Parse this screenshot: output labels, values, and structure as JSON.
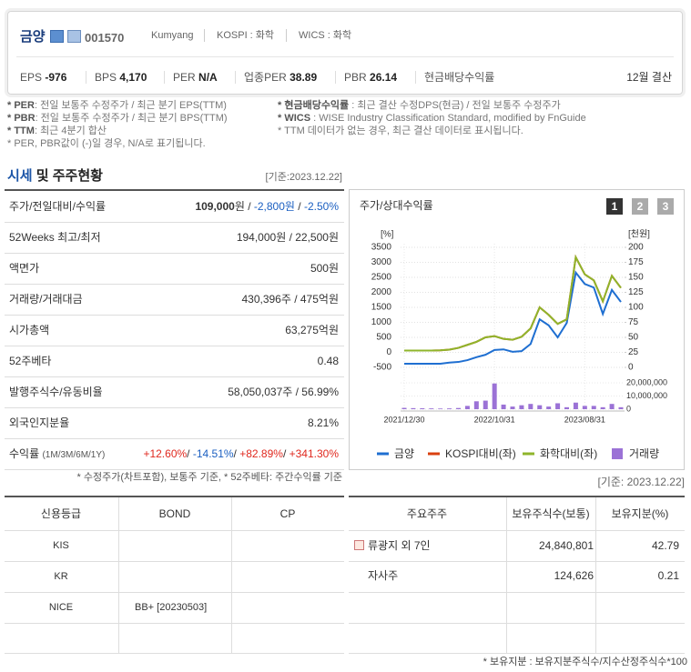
{
  "header": {
    "name": "금양",
    "code": "001570",
    "eng_name": "Kumyang",
    "market": "KOSPI : 화학",
    "wics": "WICS : 화학",
    "metrics": [
      {
        "label": "EPS",
        "value": "-976"
      },
      {
        "label": "BPS",
        "value": "4,170"
      },
      {
        "label": "PER",
        "value": "N/A"
      },
      {
        "label": "업종PER",
        "value": "38.89"
      },
      {
        "label": "PBR",
        "value": "26.14"
      },
      {
        "label": "현금배당수익률"
      }
    ],
    "fiscal": "12월 결산"
  },
  "notes_left": [
    {
      "term": "* PER",
      "text": ": 전일 보통주 수정주가 / 최근 분기 EPS(TTM)"
    },
    {
      "term": "* PBR",
      "text": ": 전일 보통주 수정주가 / 최근 분기 BPS(TTM)"
    },
    {
      "term": "* TTM",
      "text": ": 최근 4분기 합산"
    },
    {
      "text": "* PER, PBR값이 (-)일 경우, N/A로 표기됩니다."
    }
  ],
  "notes_right": [
    {
      "term": "* 현금배당수익률",
      "text": " : 최근 결산 수정DPS(현금) / 전일 보통주 수정주가"
    },
    {
      "term": "* WICS",
      "text": " : WISE Industry Classification Standard, modified by FnGuide"
    },
    {
      "text": "* TTM 데이터가 없는 경우, 최근 결산 데이터로 표시됩니다."
    }
  ],
  "section": {
    "title_a": "시세",
    "title_b": " 및 주주현황",
    "date": "[기준:2023.12.22]"
  },
  "quote_table": {
    "rows": [
      {
        "label": "주가/전일대비/수익률",
        "parts": [
          {
            "text": "109,000",
            "bold": true
          },
          {
            "text": "원 / "
          },
          {
            "text": "-2,800원",
            "color": "#1b5fc1"
          },
          {
            "text": " / "
          },
          {
            "text": "-2.50%",
            "color": "#1b5fc1"
          }
        ]
      },
      {
        "label": "52Weeks 최고/최저",
        "parts": [
          {
            "text": "194,000원 / 22,500원"
          }
        ]
      },
      {
        "label": "액면가",
        "parts": [
          {
            "text": "500원"
          }
        ]
      },
      {
        "label": "거래량/거래대금",
        "parts": [
          {
            "text": "430,396주 / 475억원"
          }
        ]
      },
      {
        "label": "시가총액",
        "parts": [
          {
            "text": "63,275억원"
          }
        ]
      },
      {
        "label": "52주베타",
        "parts": [
          {
            "text": "0.48"
          }
        ]
      },
      {
        "label": "발행주식수/유동비율",
        "parts": [
          {
            "text": "58,050,037주 / 56.99%"
          }
        ]
      },
      {
        "label": "외국인지분율",
        "parts": [
          {
            "text": "8.21%"
          }
        ]
      },
      {
        "label": "수익률",
        "sublabel": "(1M/3M/6M/1Y)",
        "parts": [
          {
            "text": "+12.60%",
            "color": "#e0281e"
          },
          {
            "text": "/ "
          },
          {
            "text": "-14.51%",
            "color": "#1b5fc1"
          },
          {
            "text": "/ "
          },
          {
            "text": "+82.89%",
            "color": "#e0281e"
          },
          {
            "text": "/ "
          },
          {
            "text": "+341.30%",
            "color": "#e0281e"
          }
        ]
      }
    ],
    "note": "* 수정주가(차트포함), 보통주 기준, * 52주베타: 주간수익률 기준"
  },
  "chart_data": {
    "type": "line",
    "title": "주가/상대수익률",
    "buttons": [
      "1",
      "2",
      "3"
    ],
    "ylabel": "[%]",
    "y2label": "[천원]",
    "categories": [
      "2021/12/30",
      null,
      null,
      null,
      null,
      null,
      null,
      null,
      null,
      null,
      "2022/10/31",
      null,
      null,
      null,
      null,
      null,
      null,
      null,
      null,
      null,
      "2023/08/31",
      null,
      null,
      null,
      null
    ],
    "series": [
      {
        "name": "금양",
        "color": "#1f6fd1",
        "axis": "y2",
        "values": [
          6,
          6,
          6,
          6,
          6,
          8,
          9,
          12,
          17,
          21,
          29,
          30,
          26,
          27,
          39,
          80,
          70,
          50,
          74,
          158,
          139,
          133,
          89,
          129,
          109
        ]
      },
      {
        "name": "KOSPI대비(좌)",
        "color": "#d9400f",
        "axis": "y",
        "values": [
          60,
          60,
          60,
          60,
          70,
          90,
          150,
          250,
          350,
          500,
          540,
          450,
          420,
          520,
          800,
          1500,
          1250,
          950,
          1100,
          3170,
          2600,
          2400,
          1700,
          2550,
          2150
        ]
      },
      {
        "name": "화학대비(좌)",
        "color": "#8fb52b",
        "axis": "y",
        "values": [
          60,
          60,
          60,
          60,
          70,
          90,
          150,
          250,
          350,
          500,
          540,
          450,
          420,
          520,
          800,
          1500,
          1250,
          950,
          1100,
          3170,
          2600,
          2400,
          1700,
          2550,
          2150
        ]
      },
      {
        "name": "거래량",
        "color": "#9b72d6",
        "type": "bar",
        "axis": "y3",
        "values": [
          1000000,
          800000,
          700000,
          600000,
          500000,
          600000,
          900000,
          2500000,
          6000000,
          6500000,
          19500000,
          3500000,
          2000000,
          3000000,
          4000000,
          3000000,
          2000000,
          4500000,
          1500000,
          5000000,
          2500000,
          2500000,
          1500000,
          4000000,
          1500000
        ]
      }
    ],
    "ylim": [
      -500,
      3500
    ],
    "yticks": [
      3500,
      3000,
      2500,
      2000,
      1500,
      1000,
      500,
      0,
      -500
    ],
    "y2lim": [
      0,
      200
    ],
    "y2ticks": [
      200,
      175,
      150,
      125,
      100,
      75,
      50,
      25,
      0
    ],
    "y3lim": [
      0,
      20000000
    ],
    "y3ticks": [
      {
        "value": 20000000,
        "label": "20,000,000"
      },
      {
        "value": 10000000,
        "label": "10,000,000"
      },
      0
    ],
    "grid": true
  },
  "rating_table": {
    "headers": [
      "신용등급",
      "BOND",
      "CP"
    ],
    "rows": [
      [
        "KIS"
      ],
      [
        "KR"
      ],
      [
        "NICE",
        "BB+ [20230503]"
      ]
    ]
  },
  "holders": {
    "date": "[기준: 2023.12.22]",
    "headers": [
      "주요주주",
      "보유주식수(보통)",
      "보유지분(%)"
    ],
    "rows": [
      [
        "류광지 외 7인",
        "24,840,801",
        "42.79"
      ],
      [
        "자사주",
        "124,626",
        "0.21"
      ]
    ],
    "note": "* 보유지분 : 보유지분주식수/지수산정주식수*100"
  }
}
